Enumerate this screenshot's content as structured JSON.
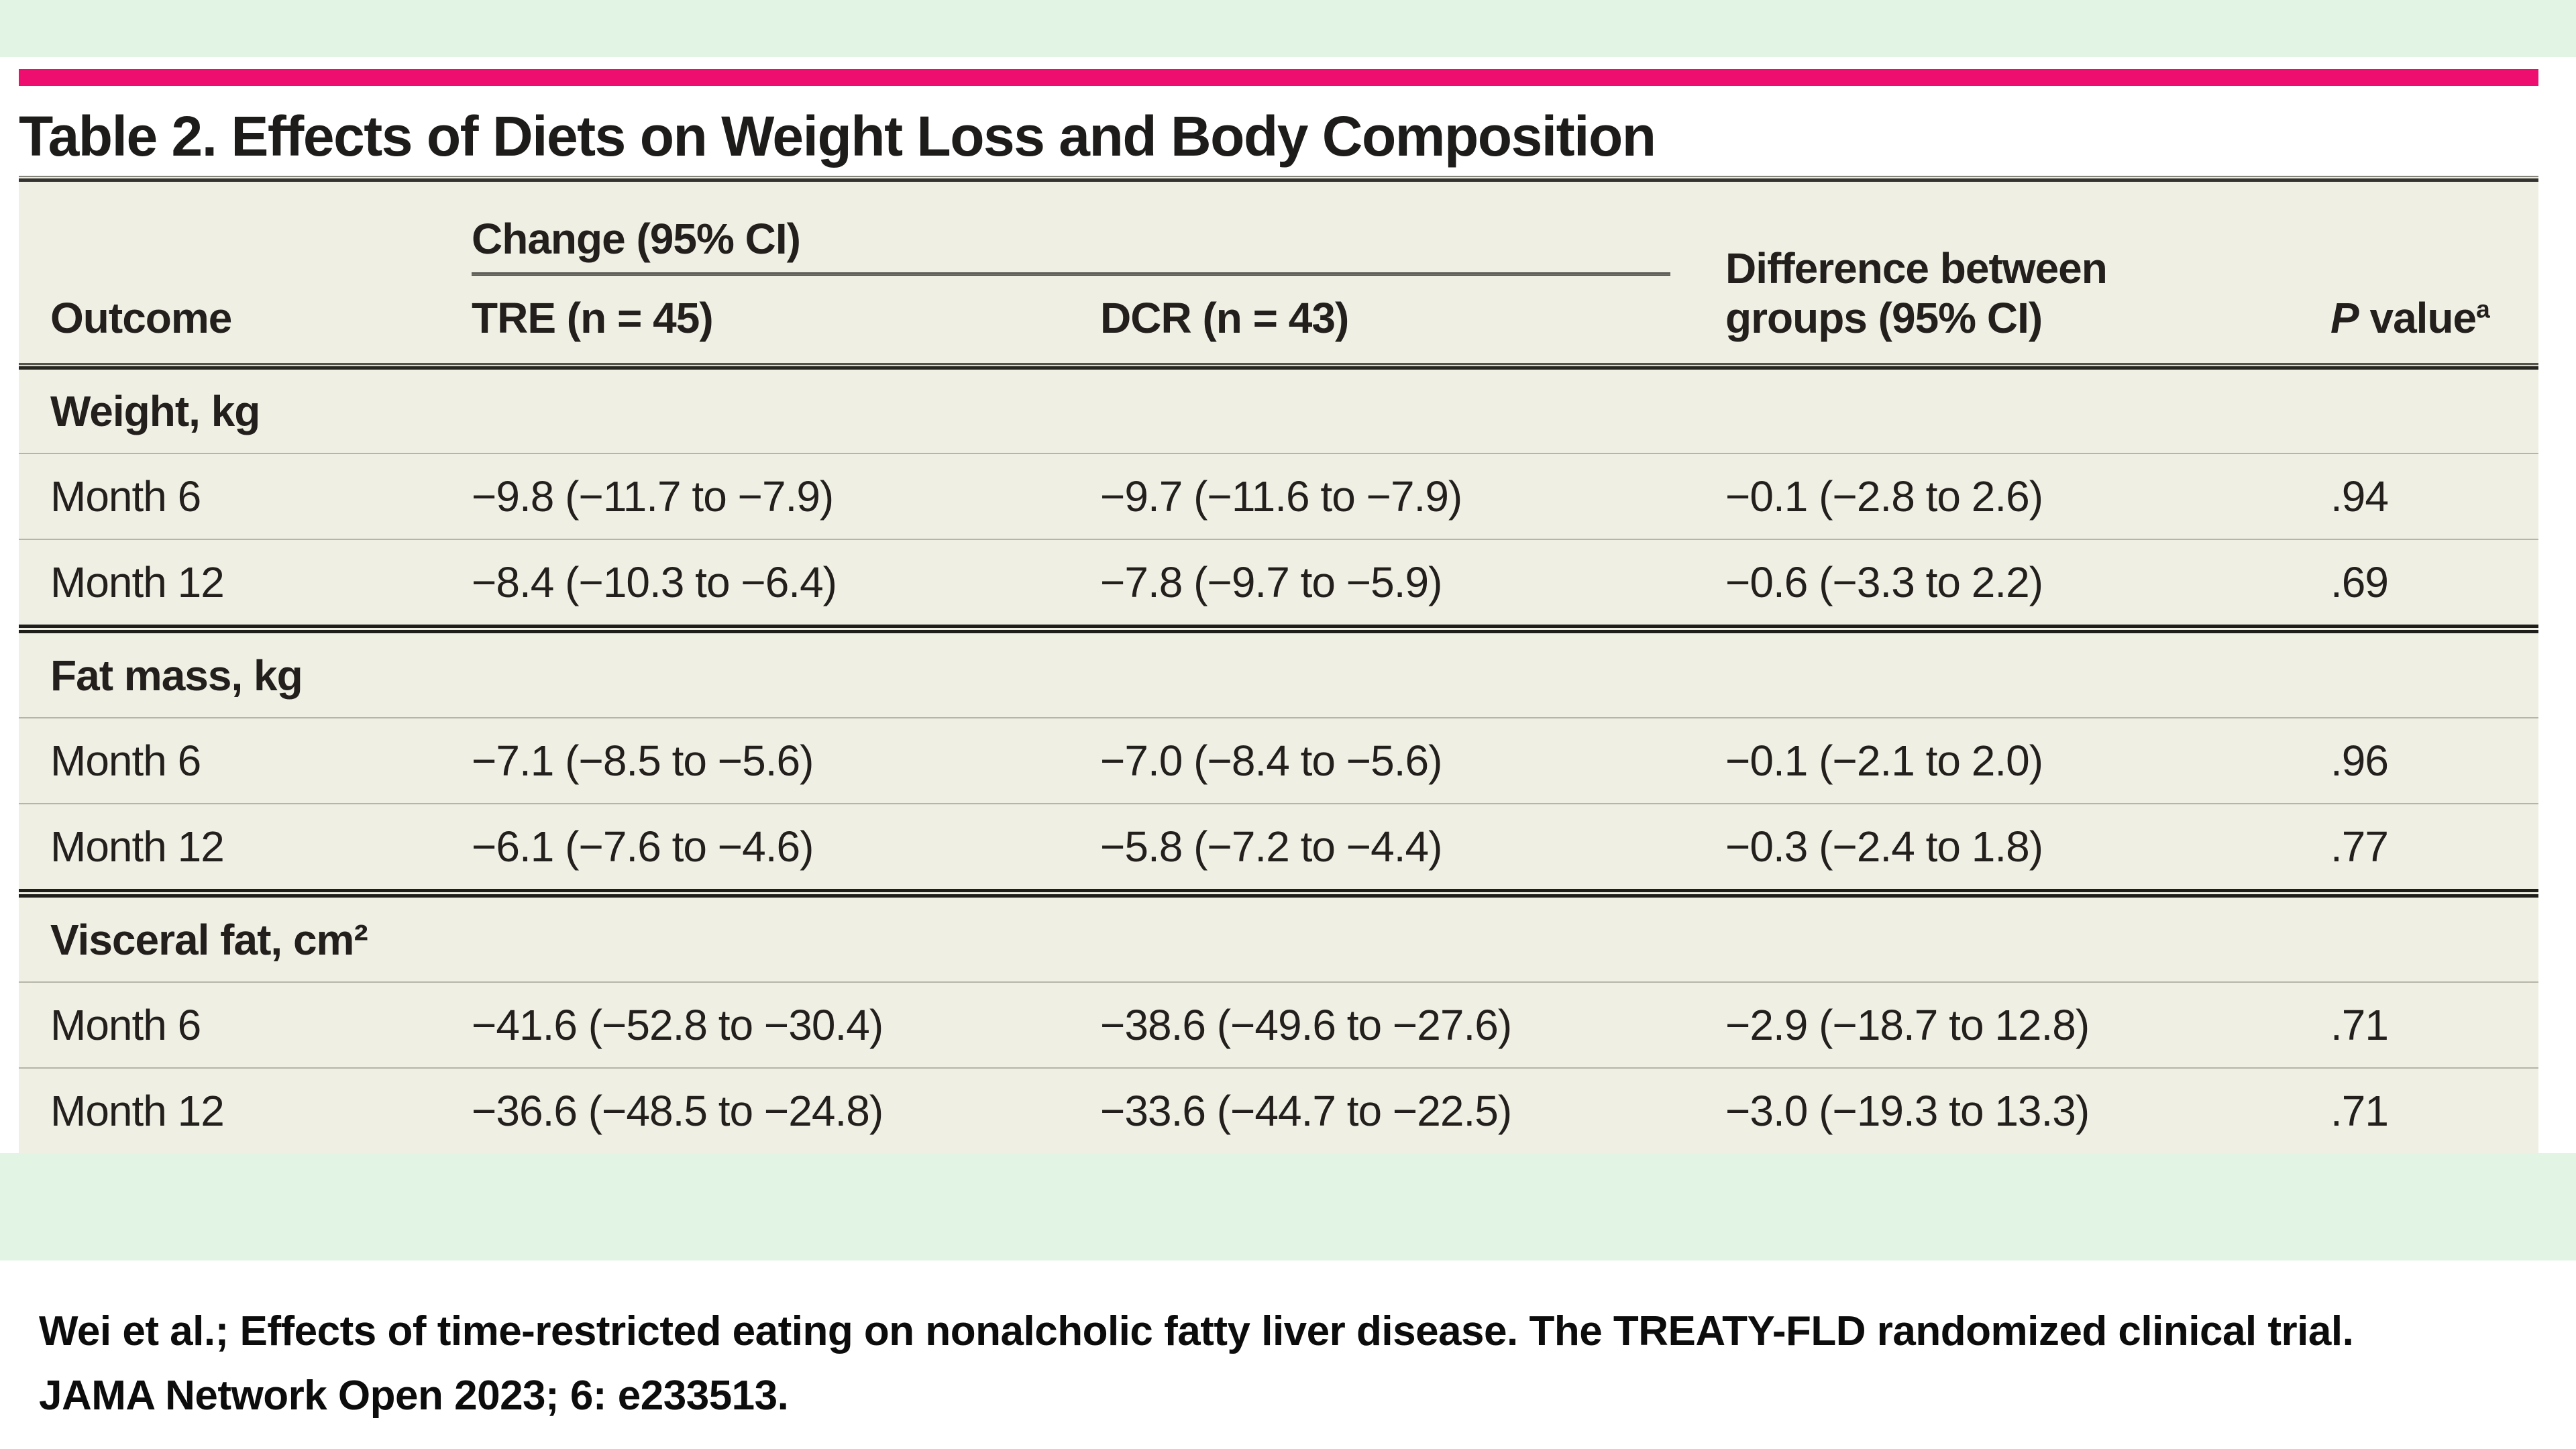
{
  "colors": {
    "accent_pink": "#ed0e6f",
    "mint_strip": "#e2f4e3",
    "table_background": "#f0efe4"
  },
  "table": {
    "title": "Table 2. Effects of Diets on Weight Loss and Body Composition",
    "header": {
      "outcome": "Outcome",
      "spanner": "Change (95% CI)",
      "tre": "TRE (n = 45)",
      "dcr": "DCR (n = 43)",
      "diff": "Difference between groups (95% CI)",
      "p_italic": "P",
      "p_rest": " value",
      "p_sup": "a"
    },
    "sections": [
      {
        "label": "Weight, kg",
        "rows": [
          {
            "outcome": "Month 6",
            "tre": "−9.8 (−11.7 to −7.9)",
            "dcr": "−9.7 (−11.6 to −7.9)",
            "diff": "−0.1 (−2.8 to 2.6)",
            "p": ".94"
          },
          {
            "outcome": "Month 12",
            "tre": "−8.4 (−10.3 to −6.4)",
            "dcr": "−7.8 (−9.7 to −5.9)",
            "diff": "−0.6 (−3.3 to 2.2)",
            "p": ".69"
          }
        ]
      },
      {
        "label": "Fat mass, kg",
        "rows": [
          {
            "outcome": "Month 6",
            "tre": "−7.1 (−8.5 to −5.6)",
            "dcr": "−7.0 (−8.4 to −5.6)",
            "diff": "−0.1 (−2.1 to 2.0)",
            "p": ".96"
          },
          {
            "outcome": "Month 12",
            "tre": "−6.1 (−7.6 to −4.6)",
            "dcr": "−5.8 (−7.2 to −4.4)",
            "diff": "−0.3 (−2.4 to 1.8)",
            "p": ".77"
          }
        ]
      },
      {
        "label": "Visceral fat, cm²",
        "rows": [
          {
            "outcome": "Month 6",
            "tre": "−41.6 (−52.8 to −30.4)",
            "dcr": "−38.6 (−49.6 to −27.6)",
            "diff": "−2.9 (−18.7 to 12.8)",
            "p": ".71"
          },
          {
            "outcome": "Month 12",
            "tre": "−36.6 (−48.5 to −24.8)",
            "dcr": "−33.6 (−44.7 to −22.5)",
            "diff": "−3.0 (−19.3 to 13.3)",
            "p": ".71"
          }
        ]
      }
    ]
  },
  "citation": {
    "line1": "Wei et al.; Effects of time-restricted eating on nonalcholic fatty liver disease. The TREATY-FLD randomized clinical trial.",
    "line2": "JAMA Network Open 2023; 6: e233513."
  }
}
